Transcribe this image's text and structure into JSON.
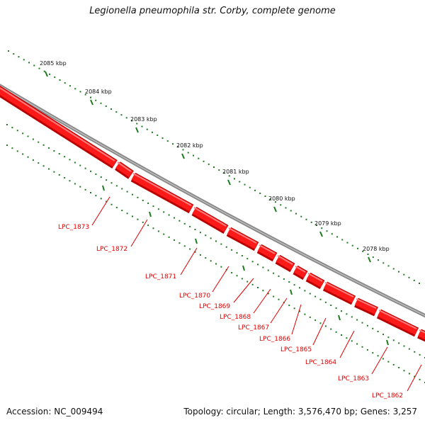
{
  "title": "Legionella pneumophila str. Corby, complete genome",
  "footer": {
    "accession": "Accession: NC_009494",
    "summary": "Topology: circular; Length: 3,576,470 bp; Genes: 3,257"
  },
  "colors": {
    "backbone": "#8a8a8a",
    "gene_fill": "#ff1a1a",
    "gene_edge": "#b80000",
    "tick": "#1e7a1e",
    "label": "#e00000"
  },
  "scale_ticks": [
    "2085 kbp",
    "2084 kbp",
    "2083 kbp",
    "2082 kbp",
    "2081 kbp",
    "2080 kbp",
    "2079 kbp",
    "2078 kbp"
  ],
  "genes": [
    "LPC_1873",
    "LPC_1872",
    "LPC_1871",
    "LPC_1870",
    "LPC_1869",
    "LPC_1868",
    "LPC_1867",
    "LPC_1866",
    "LPC_1865",
    "LPC_1864",
    "LPC_1863",
    "LPC_1862"
  ]
}
